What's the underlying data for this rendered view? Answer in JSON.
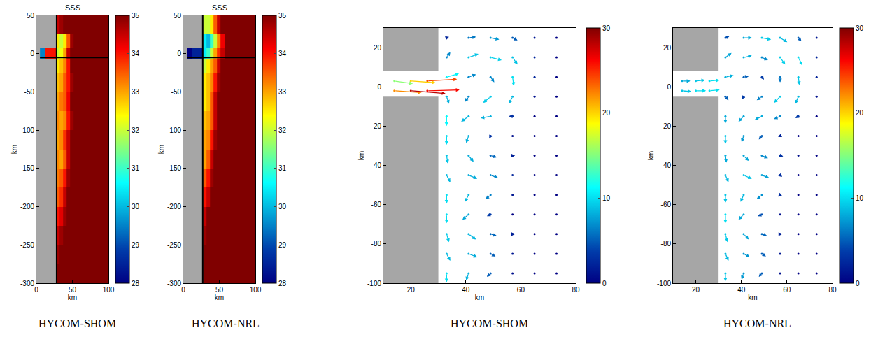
{
  "chart_data": [
    {
      "type": "heatmap",
      "title": "SSS",
      "caption": "HYCOM-SHOM",
      "x_label": "km",
      "y_label": "km",
      "xlim": [
        0,
        100
      ],
      "ylim": [
        -300,
        50
      ],
      "xticks": [
        0,
        50,
        100
      ],
      "yticks": [
        -300,
        -250,
        -200,
        -150,
        -100,
        -50,
        0,
        50
      ],
      "grid": false,
      "land": {
        "x": [
          0,
          27
        ],
        "y": [
          -300,
          50
        ]
      },
      "sections": [
        {
          "x": [
            28,
            28
          ],
          "y": [
            -300,
            50
          ]
        },
        {
          "x": [
            5,
            100
          ],
          "y": [
            -5,
            -5
          ]
        }
      ],
      "x_edges": [
        5,
        12,
        27,
        32,
        37,
        42,
        47,
        52,
        57,
        100
      ],
      "y_edges": [
        -300,
        -275,
        -250,
        -225,
        -200,
        -175,
        -150,
        -125,
        -100,
        -75,
        -50,
        -25,
        -8,
        8,
        25,
        50
      ],
      "cells": [
        [
          null,
          null,
          35,
          35,
          35,
          35,
          35,
          35,
          35
        ],
        [
          null,
          null,
          34.8,
          35,
          35,
          35,
          35,
          35,
          35
        ],
        [
          null,
          null,
          34.5,
          34.8,
          35,
          35,
          35,
          35,
          35
        ],
        [
          null,
          null,
          34,
          34.3,
          34.8,
          35,
          35,
          35,
          35
        ],
        [
          null,
          null,
          33.5,
          33.8,
          34.5,
          35,
          35,
          35,
          35
        ],
        [
          null,
          null,
          33.3,
          33.5,
          34,
          34.8,
          35,
          35,
          35
        ],
        [
          null,
          null,
          33.2,
          33,
          33.5,
          34.5,
          35,
          35,
          35
        ],
        [
          null,
          null,
          33,
          33.2,
          33.8,
          34.5,
          35,
          35,
          35
        ],
        [
          null,
          null,
          33.2,
          33,
          33.2,
          34,
          34.8,
          35,
          35
        ],
        [
          null,
          null,
          33,
          33.3,
          33.5,
          34.2,
          35,
          35,
          35
        ],
        [
          null,
          null,
          32.8,
          33,
          33.5,
          34,
          34.8,
          35,
          35
        ],
        [
          null,
          null,
          32.5,
          32.8,
          33.2,
          34,
          35,
          35,
          35
        ],
        [
          29.5,
          34,
          32,
          32.3,
          33,
          34.5,
          35,
          35,
          35
        ],
        [
          null,
          null,
          32.5,
          32,
          32.5,
          33.5,
          34.8,
          35,
          35
        ],
        [
          null,
          null,
          34.5,
          34.8,
          35,
          35,
          35,
          35,
          35
        ]
      ],
      "colorbar": {
        "range": [
          28,
          35
        ],
        "ticks": [
          28,
          29,
          30,
          31,
          32,
          33,
          34,
          35
        ]
      }
    },
    {
      "type": "heatmap",
      "title": "SSS",
      "caption": "HYCOM-NRL",
      "x_label": "km",
      "y_label": "km",
      "xlim": [
        0,
        100
      ],
      "ylim": [
        -300,
        50
      ],
      "xticks": [
        0,
        50,
        100
      ],
      "yticks": [
        -300,
        -250,
        -200,
        -150,
        -100,
        -50,
        0,
        50
      ],
      "grid": false,
      "land": {
        "x": [
          0,
          27
        ],
        "y": [
          -300,
          50
        ]
      },
      "sections": [
        {
          "x": [
            27,
            27
          ],
          "y": [
            -300,
            50
          ]
        },
        {
          "x": [
            5,
            100
          ],
          "y": [
            -5,
            -5
          ]
        }
      ],
      "x_edges": [
        5,
        12,
        27,
        32,
        37,
        42,
        47,
        52,
        57,
        100
      ],
      "y_edges": [
        -300,
        -275,
        -250,
        -225,
        -200,
        -175,
        -150,
        -125,
        -100,
        -75,
        -50,
        -25,
        -8,
        8,
        25,
        50
      ],
      "cells": [
        [
          null,
          null,
          35,
          35,
          35,
          35,
          35,
          35,
          35
        ],
        [
          null,
          null,
          35,
          35,
          35,
          35,
          35,
          35,
          35
        ],
        [
          null,
          null,
          34.8,
          35,
          35,
          35,
          35,
          35,
          35
        ],
        [
          null,
          null,
          34.5,
          35,
          35,
          35,
          35,
          35,
          35
        ],
        [
          null,
          null,
          34,
          34.5,
          35,
          35,
          35,
          35,
          35
        ],
        [
          null,
          null,
          33.5,
          34,
          34.8,
          35,
          35,
          35,
          35
        ],
        [
          null,
          null,
          33,
          33.5,
          34.5,
          35,
          35,
          35,
          35
        ],
        [
          null,
          null,
          33,
          33.2,
          34,
          34.8,
          35,
          35,
          35
        ],
        [
          null,
          null,
          32.8,
          33,
          33.5,
          34.5,
          35,
          35,
          35
        ],
        [
          null,
          null,
          32.5,
          32.8,
          33.5,
          34.5,
          35,
          35,
          35
        ],
        [
          null,
          null,
          32.5,
          32.8,
          33.2,
          34,
          34.8,
          35,
          35
        ],
        [
          null,
          null,
          32,
          32.5,
          33,
          33.5,
          34.5,
          35,
          35
        ],
        [
          28,
          28.5,
          30.5,
          31,
          32,
          33,
          33.8,
          34.5,
          35
        ],
        [
          null,
          null,
          30.5,
          30,
          31,
          32,
          33.2,
          34.2,
          35
        ],
        [
          null,
          null,
          32,
          32,
          32.5,
          33.5,
          34.5,
          35,
          35
        ]
      ],
      "colorbar": {
        "range": [
          28,
          35
        ],
        "ticks": [
          28,
          29,
          30,
          31,
          32,
          33,
          34,
          35
        ]
      }
    },
    {
      "type": "quiver",
      "caption": "HYCOM-SHOM",
      "x_label": "km",
      "y_label": "km",
      "xlim": [
        10,
        80
      ],
      "ylim": [
        -100,
        30
      ],
      "xticks": [
        20,
        40,
        60,
        80
      ],
      "yticks": [
        -100,
        -80,
        -60,
        -40,
        -20,
        0,
        20
      ],
      "grid": false,
      "land": [
        {
          "x": [
            10,
            30
          ],
          "y": [
            -100,
            -5
          ]
        },
        {
          "x": [
            10,
            30
          ],
          "y": [
            8,
            30
          ]
        }
      ],
      "grid_vectors": {
        "x": [
          33,
          41,
          49,
          57,
          65,
          73
        ],
        "y": [
          -95,
          -85,
          -75,
          -65,
          -55,
          -45,
          -35,
          -25,
          -15,
          -5,
          5,
          15,
          25
        ],
        "u": [
          [
            0,
            -2,
            -3,
            0,
            0,
            0
          ],
          [
            3,
            7,
            4,
            1,
            0,
            0
          ],
          [
            2,
            6,
            5,
            2,
            0,
            0
          ],
          [
            0,
            -5,
            -3,
            0,
            0,
            0
          ],
          [
            0,
            -3,
            -4,
            -1,
            0,
            0
          ],
          [
            3,
            7,
            6,
            1,
            0,
            0
          ],
          [
            1,
            4,
            5,
            2,
            0,
            0
          ],
          [
            0,
            -2,
            -1,
            0,
            0,
            0
          ],
          [
            0,
            -6,
            -8,
            -3,
            0,
            0
          ],
          [
            2,
            -3,
            -6,
            -3,
            0,
            0
          ],
          [
            10,
            6,
            3,
            1,
            1,
            0
          ],
          [
            3,
            8,
            9,
            4,
            1,
            0
          ],
          [
            2,
            6,
            7,
            4,
            1,
            0
          ]
        ],
        "v": [
          [
            -10,
            -8,
            -4,
            -1,
            0,
            0
          ],
          [
            -8,
            -4,
            -3,
            -1,
            0,
            0
          ],
          [
            -9,
            -6,
            -2,
            0,
            0,
            0
          ],
          [
            -10,
            -6,
            -2,
            0,
            0,
            0
          ],
          [
            -10,
            -8,
            -5,
            -1,
            0,
            0
          ],
          [
            -8,
            -4,
            -3,
            -2,
            0,
            0
          ],
          [
            -9,
            -7,
            -2,
            0,
            0,
            0
          ],
          [
            -10,
            -8,
            -3,
            -1,
            0,
            0
          ],
          [
            -11,
            -6,
            -2,
            0,
            0,
            0
          ],
          [
            -8,
            -6,
            -7,
            -8,
            -1,
            0
          ],
          [
            4,
            3,
            -6,
            -10,
            -2,
            0
          ],
          [
            6,
            4,
            -3,
            -8,
            -2,
            0
          ],
          [
            1,
            1,
            -2,
            -3,
            -1,
            0
          ]
        ]
      },
      "channel_vectors": {
        "x": [
          14,
          20,
          26,
          14,
          20,
          26
        ],
        "y": [
          -2,
          -2,
          -2,
          3,
          3,
          3
        ],
        "u": [
          22,
          28,
          26,
          15,
          20,
          24
        ],
        "v": [
          -2,
          -3,
          1,
          -3,
          -2,
          2
        ]
      },
      "colorbar": {
        "range": [
          0,
          30
        ],
        "ticks": [
          0,
          10,
          20,
          30
        ]
      }
    },
    {
      "type": "quiver",
      "caption": "HYCOM-NRL",
      "x_label": "km",
      "y_label": "km",
      "xlim": [
        10,
        80
      ],
      "ylim": [
        -100,
        30
      ],
      "xticks": [
        20,
        40,
        60,
        80
      ],
      "yticks": [
        -100,
        -80,
        -60,
        -40,
        -20,
        0,
        20
      ],
      "grid": false,
      "land": [
        {
          "x": [
            10,
            30
          ],
          "y": [
            -100,
            -5
          ]
        },
        {
          "x": [
            10,
            30
          ],
          "y": [
            8,
            30
          ]
        }
      ],
      "grid_vectors": {
        "x": [
          33,
          41,
          49,
          57,
          65,
          73
        ],
        "y": [
          -95,
          -85,
          -75,
          -65,
          -55,
          -45,
          -35,
          -25,
          -15,
          -5,
          5,
          15,
          25
        ],
        "u": [
          [
            0,
            -2,
            -3,
            0,
            0,
            0
          ],
          [
            3,
            6,
            4,
            1,
            0,
            0
          ],
          [
            2,
            5,
            5,
            2,
            0,
            0
          ],
          [
            0,
            -5,
            -4,
            -1,
            0,
            0
          ],
          [
            0,
            -3,
            -5,
            -2,
            0,
            0
          ],
          [
            3,
            8,
            7,
            2,
            0,
            0
          ],
          [
            1,
            5,
            6,
            3,
            1,
            0
          ],
          [
            0,
            -2,
            -3,
            -2,
            0,
            0
          ],
          [
            0,
            -5,
            -7,
            -6,
            -3,
            0
          ],
          [
            3,
            -2,
            -5,
            -6,
            -3,
            0
          ],
          [
            8,
            5,
            2,
            0,
            1,
            0
          ],
          [
            6,
            8,
            6,
            5,
            4,
            1
          ],
          [
            4,
            8,
            9,
            7,
            3,
            1
          ]
        ],
        "v": [
          [
            -9,
            -7,
            -4,
            -1,
            0,
            0
          ],
          [
            -8,
            -4,
            -3,
            -1,
            0,
            0
          ],
          [
            -9,
            -6,
            -2,
            0,
            0,
            0
          ],
          [
            -10,
            -6,
            -2,
            0,
            0,
            0
          ],
          [
            -9,
            -8,
            -5,
            -2,
            0,
            0
          ],
          [
            -8,
            -4,
            -3,
            -2,
            0,
            0
          ],
          [
            -8,
            -6,
            -3,
            -1,
            0,
            0
          ],
          [
            -9,
            -7,
            -4,
            -1,
            0,
            0
          ],
          [
            -8,
            -6,
            -4,
            -3,
            -2,
            0
          ],
          [
            -4,
            -3,
            -4,
            -7,
            -8,
            -1
          ],
          [
            2,
            1,
            -3,
            -6,
            -9,
            -2
          ],
          [
            5,
            2,
            -3,
            -8,
            -9,
            -2
          ],
          [
            2,
            0,
            -2,
            -5,
            -4,
            -1
          ]
        ]
      },
      "channel_vectors": {
        "x": [
          14,
          20,
          26,
          14,
          20,
          26
        ],
        "y": [
          -2,
          -2,
          -2,
          3,
          3,
          3
        ],
        "u": [
          9,
          10,
          10,
          8,
          9,
          10
        ],
        "v": [
          -1,
          0,
          1,
          0,
          1,
          1
        ]
      },
      "colorbar": {
        "range": [
          0,
          30
        ],
        "ticks": [
          0,
          10,
          20,
          30
        ]
      }
    }
  ]
}
